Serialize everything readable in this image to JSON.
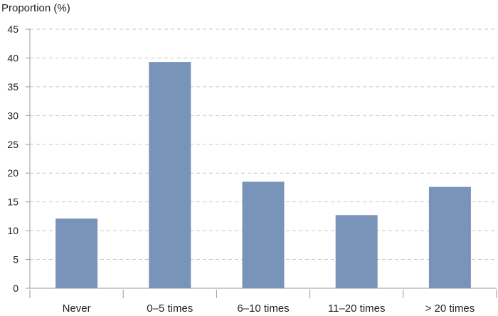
{
  "chart_data": {
    "type": "bar",
    "ylabel": "Proportion (%)",
    "xlabel": "",
    "categories": [
      "Never",
      "0–5 times",
      "6–10 times",
      "11–20 times",
      "> 20 times"
    ],
    "values": [
      12.1,
      39.3,
      18.5,
      12.7,
      17.6
    ],
    "ylim": [
      0,
      45
    ],
    "yticks": [
      "0",
      "5",
      "10",
      "15",
      "20",
      "25",
      "30",
      "35",
      "40",
      "45"
    ],
    "grid": true,
    "bar_color": "#7894b8"
  }
}
